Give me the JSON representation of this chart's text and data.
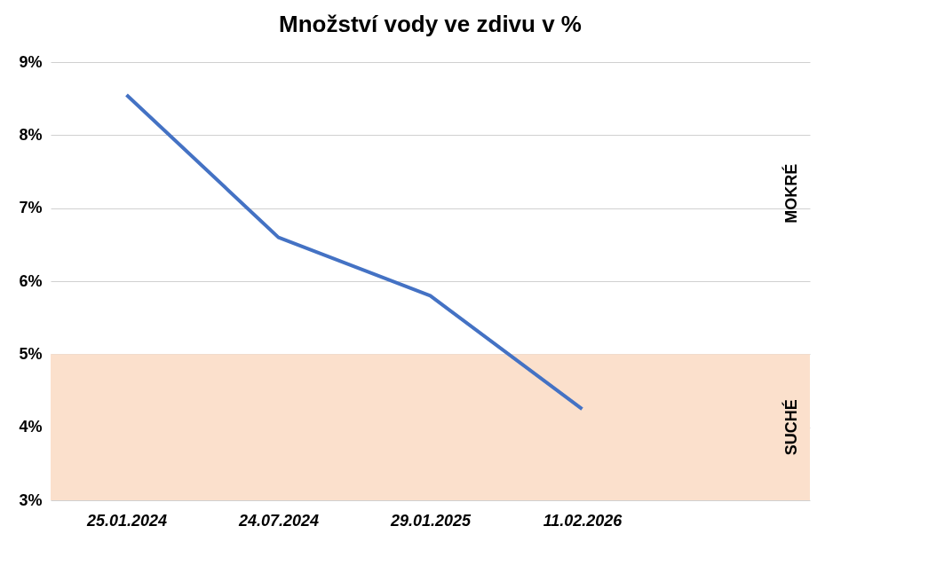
{
  "chart_data": {
    "type": "line",
    "title": "Množství vody ve zdivu v %",
    "categories": [
      "25.01.2024",
      "24.07.2024",
      "29.01.2025",
      "11.02.2026",
      null
    ],
    "series": [
      {
        "color": "#4472c4",
        "values": [
          8.55,
          6.6,
          5.8,
          4.25,
          null
        ]
      }
    ],
    "ylim": [
      3,
      9
    ],
    "yticks": [
      {
        "value": 3,
        "label": "3%"
      },
      {
        "value": 4,
        "label": "4%"
      },
      {
        "value": 5,
        "label": "5%"
      },
      {
        "value": 6,
        "label": "6%"
      },
      {
        "value": 7,
        "label": "7%"
      },
      {
        "value": 8,
        "label": "8%"
      },
      {
        "value": 9,
        "label": "9%"
      }
    ],
    "grid": "y",
    "legend": false,
    "marker": "none",
    "line_style": "solid",
    "bands": [
      {
        "axis": "y",
        "from": 3,
        "to": 5,
        "color": "#fbe0cc",
        "label": "SUCHÉ"
      }
    ],
    "annotations": [
      "MOKRÉ"
    ]
  }
}
